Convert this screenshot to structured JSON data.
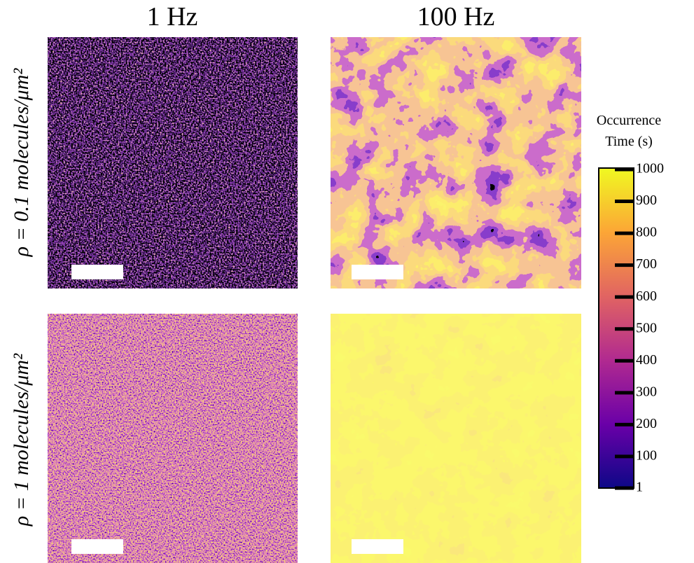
{
  "columns": [
    "1 Hz",
    "100 Hz"
  ],
  "rows": [
    "ρ = 0.1 molecules/μm²",
    "ρ = 1 molecules/μm²"
  ],
  "colorbar": {
    "title": [
      "Occurrence",
      "Time (s)"
    ],
    "range": [
      1,
      1000
    ],
    "ticks": [
      1,
      100,
      200,
      300,
      400,
      500,
      600,
      700,
      800,
      900,
      1000
    ]
  }
}
